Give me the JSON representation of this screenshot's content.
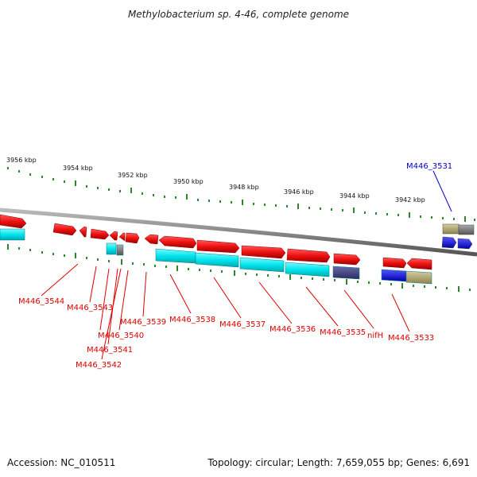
{
  "title": "Methylobacterium sp. 4-46, complete genome",
  "footer": {
    "accession": "Accession: NC_010511",
    "topology": "Topology: circular; Length: 7,659,055 bp; Genes: 6,691"
  },
  "colors": {
    "forward_gene": "#ee1111",
    "cds": "#00e5ee",
    "grey_feature": "#777777",
    "slate_feature": "#3f3f7a",
    "blue_gene": "#1111dd",
    "khaki_feature": "#b3a870",
    "tick": "#2a8a2a",
    "backbone": "#888888",
    "label_red": "#dd0000",
    "label_blue": "#0000cc"
  },
  "scale_labels": [
    "3956 kbp",
    "3954 kbp",
    "3952 kbp",
    "3950 kbp",
    "3948 kbp",
    "3946 kbp",
    "3944 kbp",
    "3942 kbp"
  ],
  "gene_labels": [
    {
      "text": "M446_3531",
      "color": "blue"
    },
    {
      "text": "M446_3544",
      "color": "red"
    },
    {
      "text": "M446_3543",
      "color": "red"
    },
    {
      "text": "M446_3539",
      "color": "red"
    },
    {
      "text": "M446_3538",
      "color": "red"
    },
    {
      "text": "M446_3537",
      "color": "red"
    },
    {
      "text": "M446_3536",
      "color": "red"
    },
    {
      "text": "M446_3535",
      "color": "red"
    },
    {
      "text": "nifH",
      "color": "red"
    },
    {
      "text": "M446_3533",
      "color": "red"
    },
    {
      "text": "M446_3540",
      "color": "red"
    },
    {
      "text": "M446_3541",
      "color": "red"
    },
    {
      "text": "M446_3542",
      "color": "red"
    }
  ]
}
